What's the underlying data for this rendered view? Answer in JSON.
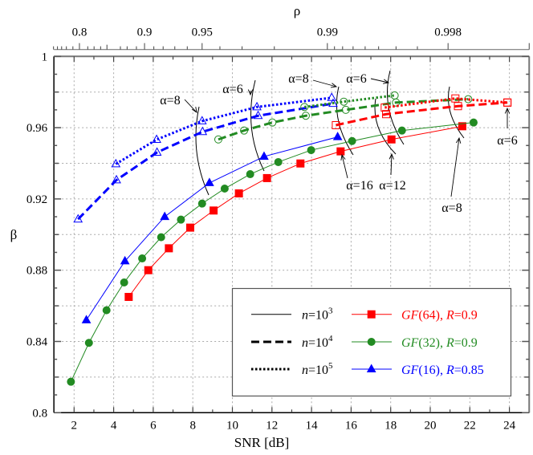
{
  "chart_data": {
    "type": "line",
    "xlabel": "SNR [dB]",
    "ylabel": "β",
    "top_axis": {
      "label": "ρ",
      "ticks": [
        {
          "label": "0.8",
          "snr": 2.27
        },
        {
          "label": "0.9",
          "snr": 5.56
        },
        {
          "label": "0.95",
          "snr": 8.47
        },
        {
          "label": "0.99",
          "snr": 14.8
        },
        {
          "label": "0.998",
          "snr": 20.9
        }
      ]
    },
    "xlim": [
      1,
      25
    ],
    "ylim": [
      0.8,
      1.0
    ],
    "xticks": [
      2,
      4,
      6,
      8,
      10,
      12,
      14,
      16,
      18,
      20,
      22,
      24
    ],
    "yticks": [
      0.8,
      0.84,
      0.88,
      0.92,
      0.96,
      1
    ],
    "ytick_labels": [
      "0.8",
      "0.84",
      "0.88",
      "0.92",
      "0.96",
      "1"
    ],
    "grid": true,
    "legend_position": "bottom-right",
    "colors": {
      "gf64": "#ff0000",
      "gf32": "#228b22",
      "gf16": "#0000ff"
    },
    "legend": {
      "styles": [
        {
          "n": "n",
          "eq": "=10",
          "exp": "3",
          "dash": "solid"
        },
        {
          "n": "n",
          "eq": "=10",
          "exp": "4",
          "dash": "dashed"
        },
        {
          "n": "n",
          "eq": "=10",
          "exp": "5",
          "dash": "dotted"
        }
      ],
      "codes": [
        {
          "gf": "GF",
          "q": "(64), ",
          "r": "R",
          "rate": "=0.9",
          "color": "#ff0000",
          "marker": "square"
        },
        {
          "gf": "GF",
          "q": "(32), ",
          "r": "R",
          "rate": "=0.9",
          "color": "#228b22",
          "marker": "circle"
        },
        {
          "gf": "GF",
          "q": "(16), ",
          "r": "R",
          "rate": "=0.85",
          "color": "#0000ff",
          "marker": "triangle"
        }
      ]
    },
    "series": [
      {
        "code": "GF(64)",
        "n": "1e3",
        "color": "#ff0000",
        "marker": "square",
        "filled": true,
        "dash": "solid",
        "x": [
          4.76,
          5.75,
          6.79,
          7.87,
          9.05,
          10.33,
          11.75,
          13.44,
          15.47,
          18.04,
          21.62
        ],
        "y": [
          0.865,
          0.88,
          0.8923,
          0.9039,
          0.9135,
          0.9231,
          0.9317,
          0.9399,
          0.9467,
          0.9534,
          0.9608
        ]
      },
      {
        "code": "GF(32)",
        "n": "1e3",
        "color": "#228b22",
        "marker": "circle",
        "filled": true,
        "dash": "solid",
        "x": [
          1.84,
          2.75,
          3.64,
          4.53,
          5.44,
          6.4,
          7.4,
          8.47,
          9.61,
          10.9,
          12.32,
          13.98,
          16.05,
          18.57,
          22.19
        ],
        "y": [
          0.8174,
          0.8392,
          0.8575,
          0.8731,
          0.8866,
          0.8985,
          0.9084,
          0.9174,
          0.9258,
          0.9339,
          0.9407,
          0.9474,
          0.9525,
          0.9584,
          0.9629
        ]
      },
      {
        "code": "GF(16)",
        "n": "1e3",
        "color": "#0000ff",
        "marker": "triangle",
        "filled": true,
        "dash": "solid",
        "x": [
          2.62,
          4.57,
          6.58,
          8.84,
          11.6,
          15.32
        ],
        "y": [
          0.852,
          0.8851,
          0.91,
          0.929,
          0.9438,
          0.9548
        ]
      },
      {
        "code": "GF(64)",
        "n": "1e4",
        "color": "#ff0000",
        "marker": "square",
        "filled": false,
        "dash": "dashed",
        "x": [
          15.23,
          17.77,
          21.4,
          23.9
        ],
        "y": [
          0.9614,
          0.9676,
          0.9721,
          0.9741
        ]
      },
      {
        "code": "GF(32)",
        "n": "1e4",
        "color": "#228b22",
        "marker": "circle",
        "filled": false,
        "dash": "dashed",
        "x": [
          9.29,
          10.59,
          12.02,
          13.71,
          15.73,
          18.27,
          21.92
        ],
        "y": [
          0.9534,
          0.9584,
          0.9629,
          0.9667,
          0.97,
          0.9741,
          0.976
        ]
      },
      {
        "code": "GF(16)",
        "n": "1e4",
        "color": "#0000ff",
        "marker": "triangle",
        "filled": false,
        "dash": "dashed",
        "x": [
          2.2,
          4.14,
          6.19,
          8.49,
          11.3,
          15.09
        ],
        "y": [
          0.9086,
          0.9306,
          0.9461,
          0.9577,
          0.9667,
          0.9735
        ]
      },
      {
        "code": "GF(64)",
        "n": "1e5",
        "color": "#ff0000",
        "marker": "square",
        "filled": false,
        "dash": "dotted",
        "x": [
          17.7,
          21.27,
          23.9
        ],
        "y": [
          0.9713,
          0.9764,
          0.9741
        ]
      },
      {
        "code": "GF(32)",
        "n": "1e5",
        "color": "#228b22",
        "marker": "circle",
        "filled": false,
        "dash": "dotted",
        "x": [
          13.64,
          15.63,
          18.2
        ],
        "y": [
          0.9716,
          0.9746,
          0.9781
        ]
      },
      {
        "code": "GF(16)",
        "n": "1e5",
        "color": "#0000ff",
        "marker": "triangle",
        "filled": false,
        "dash": "dotted",
        "x": [
          4.11,
          6.17,
          8.47,
          11.24,
          15.02
        ],
        "y": [
          0.9396,
          0.9533,
          0.9637,
          0.9716,
          0.9768
        ]
      }
    ],
    "annotations": [
      "α=8",
      "α=6",
      "α=8",
      "α=6",
      "α=16",
      "α=12",
      "α=8",
      "α=6"
    ]
  }
}
